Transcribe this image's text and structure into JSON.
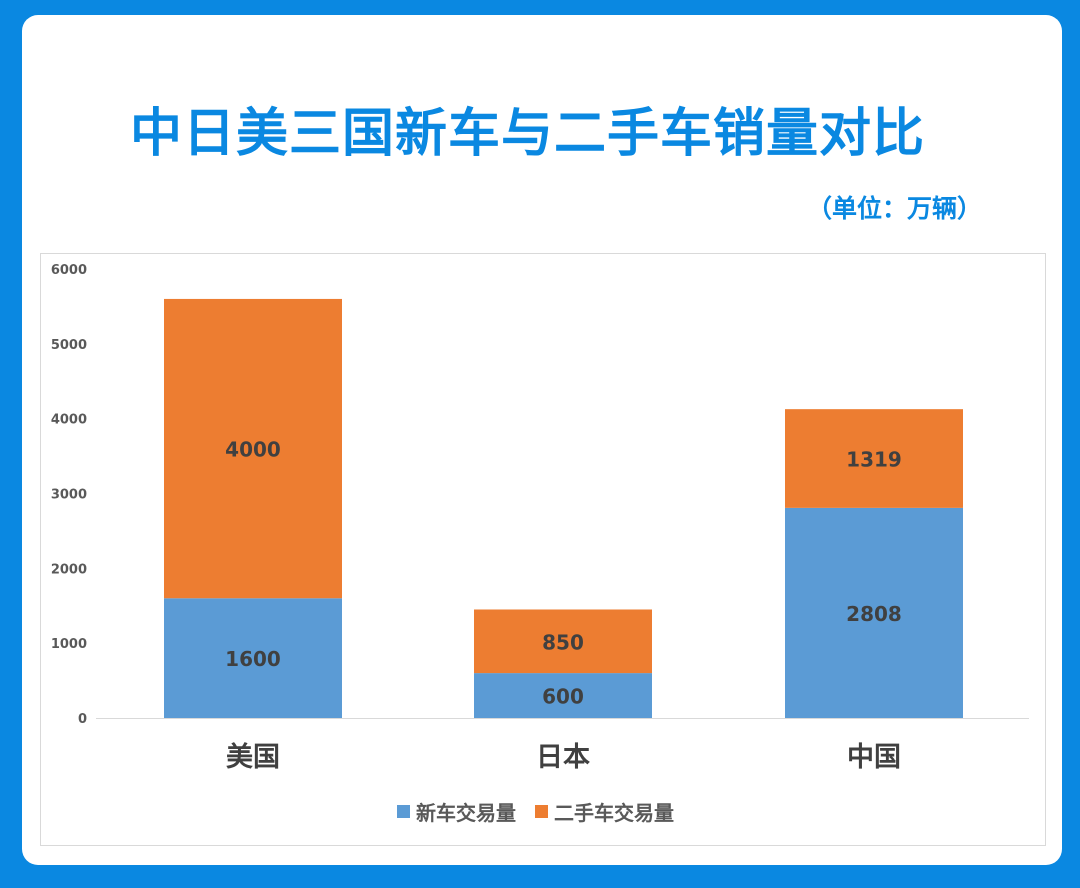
{
  "header": {
    "title": "中日美三国新车与二手车销量对比",
    "unit": "（单位：万辆）"
  },
  "colors": {
    "background": "#0a88e1",
    "new": "#5b9bd5",
    "used": "#ed7d31"
  },
  "chart_data": {
    "type": "bar",
    "stacked": true,
    "title": "中日美三国新车与二手车销量对比",
    "subtitle": "（单位：万辆）",
    "categories": [
      "美国",
      "日本",
      "中国"
    ],
    "series": [
      {
        "name": "新车交易量",
        "values": [
          1600,
          600,
          2808
        ],
        "color": "#5b9bd5"
      },
      {
        "name": "二手车交易量",
        "values": [
          4000,
          850,
          1319
        ],
        "color": "#ed7d31"
      }
    ],
    "ylim": [
      0,
      6000
    ],
    "yticks": [
      0,
      1000,
      2000,
      3000,
      4000,
      5000,
      6000
    ],
    "xlabel": "",
    "ylabel": "",
    "grid": false,
    "legend": "bottom"
  }
}
